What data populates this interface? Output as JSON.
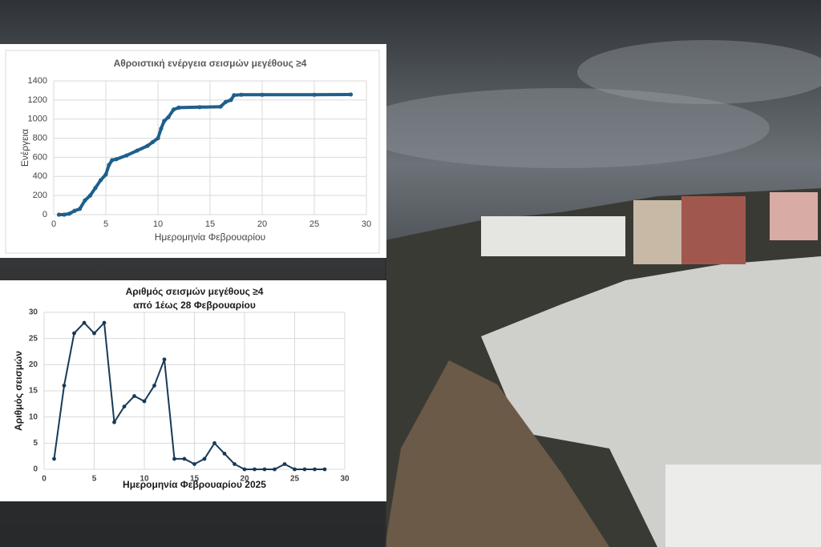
{
  "chart_data": [
    {
      "type": "line",
      "title": "Αθροιστική ενέργεια σεισμών μεγέθους ≥4",
      "xlabel": "Ημερομηνία Φεβρουαρίου",
      "ylabel": "Ενέργεια",
      "x": [
        0.5,
        1,
        1.5,
        2,
        2.5,
        3,
        3.5,
        4,
        4.5,
        5,
        5.3,
        5.6,
        6,
        7,
        8,
        9,
        9.5,
        10,
        10.3,
        10.6,
        11,
        11.5,
        12,
        14,
        16,
        16.5,
        17,
        17.3,
        18,
        20,
        25,
        28.5
      ],
      "series": [
        {
          "color": "#1f5f8b",
          "values": [
            0,
            0,
            10,
            40,
            60,
            150,
            200,
            280,
            360,
            420,
            520,
            570,
            580,
            620,
            670,
            720,
            760,
            800,
            900,
            980,
            1020,
            1100,
            1120,
            1125,
            1130,
            1180,
            1200,
            1250,
            1255,
            1255,
            1255,
            1258
          ]
        }
      ],
      "xlim": [
        0,
        30
      ],
      "xticks": [
        0,
        5,
        10,
        15,
        20,
        25,
        30
      ],
      "ylim": [
        0,
        1400
      ],
      "yticks": [
        0,
        200,
        400,
        600,
        800,
        1000,
        1200,
        1400
      ],
      "grid": true
    },
    {
      "type": "line",
      "title": "Αριθμός σεισμών μεγέθους ≥4",
      "subtitle": "από 1έως 28 Φεβρουαρίου",
      "xlabel": "Ημερομηνία Φεβρουαρίου 2025",
      "ylabel": "Αριθμός σεισμών",
      "x": [
        1,
        2,
        3,
        4,
        5,
        6,
        7,
        8,
        9,
        10,
        11,
        12,
        13,
        14,
        15,
        16,
        17,
        18,
        19,
        20,
        21,
        22,
        23,
        24,
        25,
        26,
        27,
        28
      ],
      "series": [
        {
          "color": "#173a58",
          "values": [
            2,
            16,
            26,
            28,
            26,
            28,
            9,
            12,
            14,
            13,
            16,
            21,
            2,
            2,
            1,
            2,
            5,
            3,
            1,
            0,
            0,
            0,
            0,
            1,
            0,
            0,
            0,
            0
          ]
        }
      ],
      "xlim": [
        0,
        30
      ],
      "xticks": [
        0,
        5,
        10,
        15,
        20,
        25,
        30
      ],
      "ylim": [
        0,
        30
      ],
      "yticks": [
        0,
        5,
        10,
        15,
        20,
        25,
        30
      ],
      "grid": true
    }
  ]
}
